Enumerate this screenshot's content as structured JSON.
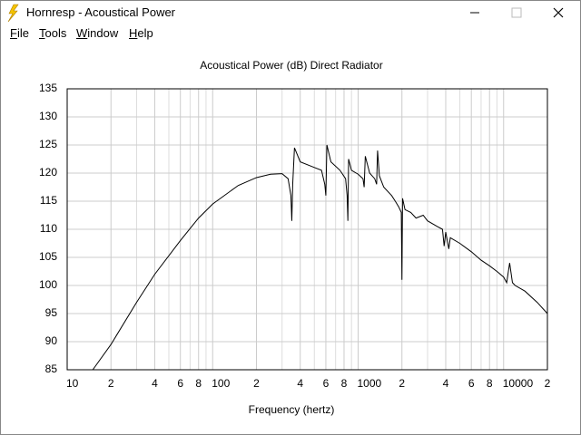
{
  "window": {
    "title": "Hornresp - Acoustical Power",
    "menu": [
      "File",
      "Tools",
      "Window",
      "Help"
    ]
  },
  "chart_data": {
    "type": "line",
    "title": "Acoustical Power (dB)   Direct Radiator",
    "xlabel": "Frequency (hertz)",
    "xscale": "log",
    "xlim": [
      10,
      20000
    ],
    "xticks": [
      10,
      {
        "value": 20,
        "label": "2"
      },
      {
        "value": 40,
        "label": "4"
      },
      {
        "value": 60,
        "label": "6"
      },
      {
        "value": 80,
        "label": "8"
      },
      100,
      {
        "value": 200,
        "label": "2"
      },
      {
        "value": 400,
        "label": "4"
      },
      {
        "value": 600,
        "label": "6"
      },
      {
        "value": 800,
        "label": "8"
      },
      1000,
      {
        "value": 2000,
        "label": "2"
      },
      {
        "value": 4000,
        "label": "4"
      },
      {
        "value": 6000,
        "label": "6"
      },
      {
        "value": 8000,
        "label": "8"
      },
      10000,
      {
        "value": 20000,
        "label": "2"
      }
    ],
    "xminor": [
      30,
      50,
      70,
      90,
      300,
      500,
      700,
      900,
      3000,
      5000,
      7000,
      9000
    ],
    "ylim": [
      85,
      135
    ],
    "yticks": [
      85,
      90,
      95,
      100,
      105,
      110,
      115,
      120,
      125,
      130,
      135
    ],
    "grid": true,
    "color": "#000000",
    "x": [
      15,
      20,
      30,
      40,
      60,
      80,
      100,
      150,
      200,
      250,
      300,
      330,
      345,
      350,
      355,
      365,
      400,
      500,
      560,
      590,
      600,
      610,
      650,
      750,
      820,
      840,
      850,
      860,
      900,
      1000,
      1080,
      1100,
      1120,
      1200,
      1300,
      1340,
      1360,
      1400,
      1500,
      1700,
      1800,
      1900,
      1980,
      2000,
      2020,
      2100,
      2300,
      2500,
      2800,
      3000,
      3500,
      3800,
      3900,
      4000,
      4200,
      4300,
      5000,
      6000,
      7000,
      8000,
      9000,
      10000,
      10500,
      11000,
      11500,
      12000,
      14000,
      17000,
      20000
    ],
    "values": [
      85,
      89.5,
      97,
      102,
      108,
      112,
      114.5,
      117.8,
      119.2,
      119.8,
      119.9,
      119,
      116,
      111.5,
      118,
      124.5,
      122,
      121,
      120.5,
      118,
      116,
      125,
      122,
      120.5,
      119,
      116,
      111.5,
      122.5,
      120.5,
      119.8,
      119,
      117.5,
      123,
      120,
      119,
      118,
      124,
      119.5,
      117.5,
      116,
      115,
      114,
      113,
      101,
      115.5,
      113.5,
      113,
      112,
      112.5,
      111.5,
      110.5,
      110,
      107,
      109.5,
      106.5,
      108.5,
      107.5,
      106,
      104.5,
      103.5,
      102.5,
      101.5,
      100.5,
      104,
      100.5,
      100,
      99,
      97,
      95
    ]
  }
}
